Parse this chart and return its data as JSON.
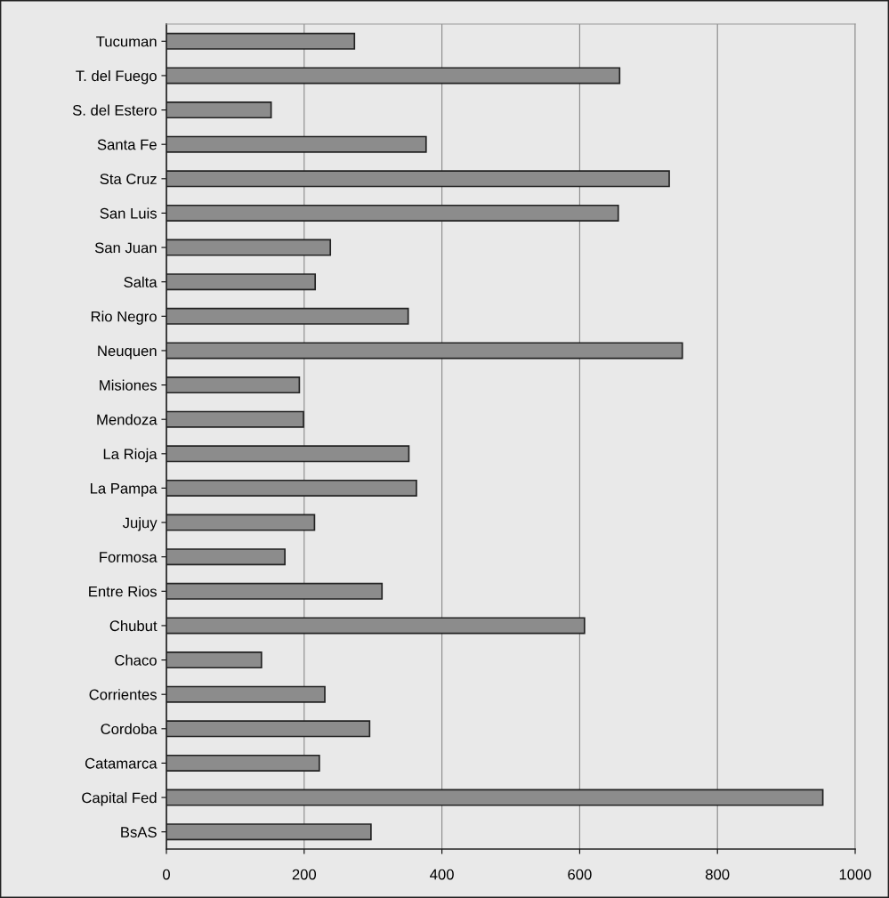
{
  "chart_data": {
    "type": "bar",
    "orientation": "horizontal",
    "categories": [
      "Tucuman",
      "T. del Fuego",
      "S. del Estero",
      "Santa Fe",
      "Sta Cruz",
      "San Luis",
      "San Juan",
      "Salta",
      "Rio Negro",
      "Neuquen",
      "Misiones",
      "Mendoza",
      "La Rioja",
      "La Pampa",
      "Jujuy",
      "Formosa",
      "Entre Rios",
      "Chubut",
      "Chaco",
      "Corrientes",
      "Cordoba",
      "Catamarca",
      "Capital Fed",
      "BsAS"
    ],
    "values": [
      273,
      658,
      152,
      377,
      730,
      656,
      238,
      216,
      351,
      749,
      193,
      199,
      352,
      363,
      215,
      172,
      313,
      607,
      138,
      230,
      295,
      222,
      953,
      297
    ],
    "color": "#8c8c8c",
    "xlim": [
      0,
      1000
    ],
    "xticks": [
      0,
      200,
      400,
      600,
      800,
      1000
    ],
    "grid": "x"
  }
}
